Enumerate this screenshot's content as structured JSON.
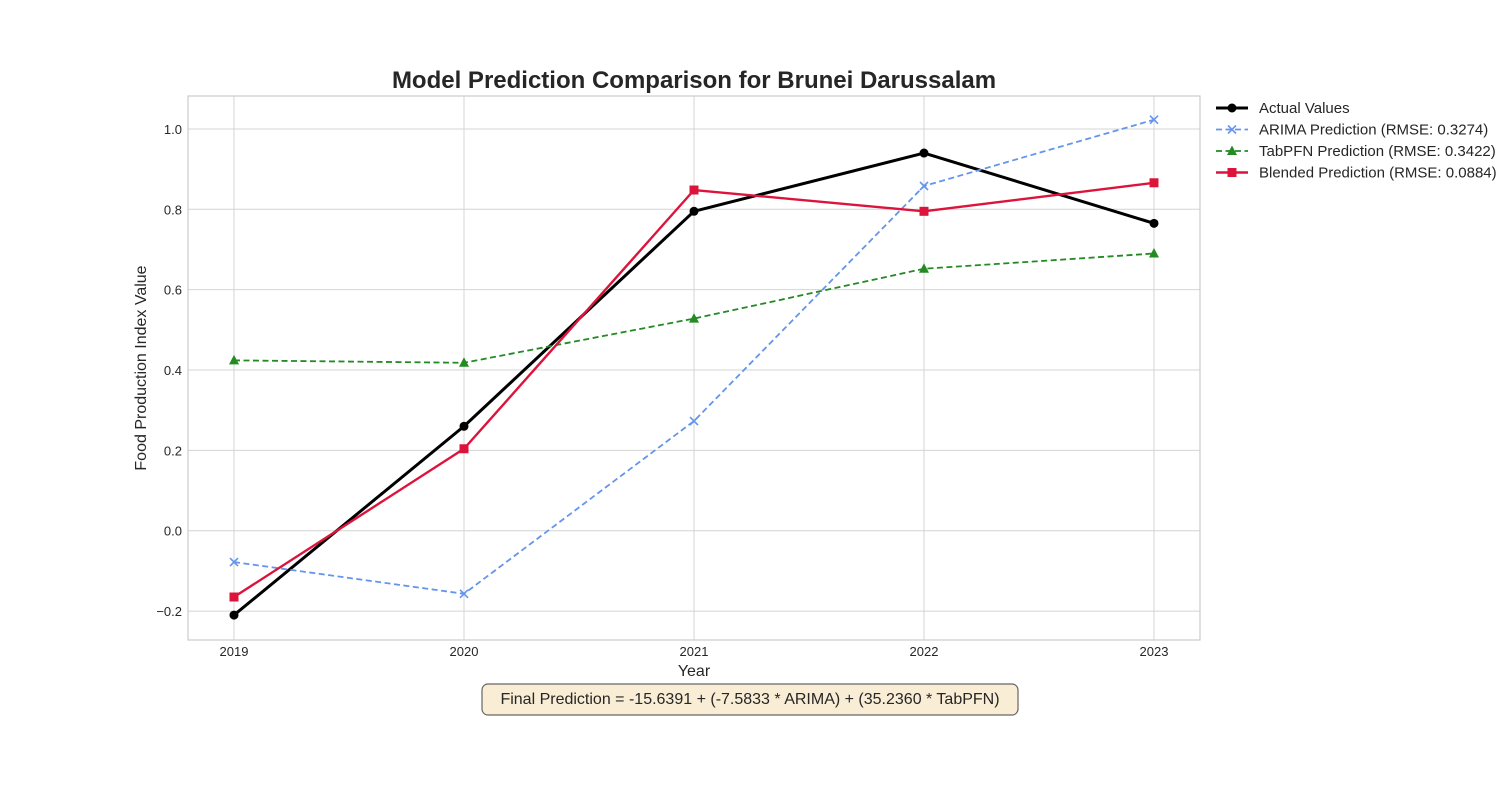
{
  "chart_data": {
    "type": "line",
    "title": "Model Prediction Comparison for Brunei Darussalam",
    "xlabel": "Year",
    "ylabel": "Food Production Index Value",
    "x": [
      2019,
      2020,
      2021,
      2022,
      2023
    ],
    "xlim": [
      2018.8,
      2023.2
    ],
    "ylim": [
      -0.272,
      1.082
    ],
    "yticks": [
      -0.2,
      0.0,
      0.2,
      0.4,
      0.6,
      0.8,
      1.0
    ],
    "ytick_labels": [
      "−0.2",
      "0.0",
      "0.2",
      "0.4",
      "0.6",
      "0.8",
      "1.0"
    ],
    "xtick_labels": [
      "2019",
      "2020",
      "2021",
      "2022",
      "2023"
    ],
    "grid": true,
    "legend_position": "outside-top-right",
    "series": [
      {
        "name": "Actual Values",
        "values": [
          -0.21,
          0.26,
          0.795,
          0.94,
          0.765
        ],
        "color": "#000000",
        "dash": "solid",
        "marker": "circle"
      },
      {
        "name": "ARIMA Prediction (RMSE: 0.3274)",
        "values": [
          -0.078,
          -0.157,
          0.273,
          0.858,
          1.023
        ],
        "color": "#6495ed",
        "dash": "dashed",
        "marker": "x"
      },
      {
        "name": "TabPFN Prediction (RMSE: 0.3422)",
        "values": [
          0.424,
          0.418,
          0.528,
          0.652,
          0.69
        ],
        "color": "#228b22",
        "dash": "dashed",
        "marker": "triangle"
      },
      {
        "name": "Blended Prediction (RMSE: 0.0884)",
        "values": [
          -0.165,
          0.204,
          0.848,
          0.795,
          0.866
        ],
        "color": "#dc143c",
        "dash": "solid",
        "marker": "square"
      }
    ],
    "annotation": "Final Prediction = -15.6391 + (-7.5833 * ARIMA) + (35.2360 * TabPFN)"
  }
}
